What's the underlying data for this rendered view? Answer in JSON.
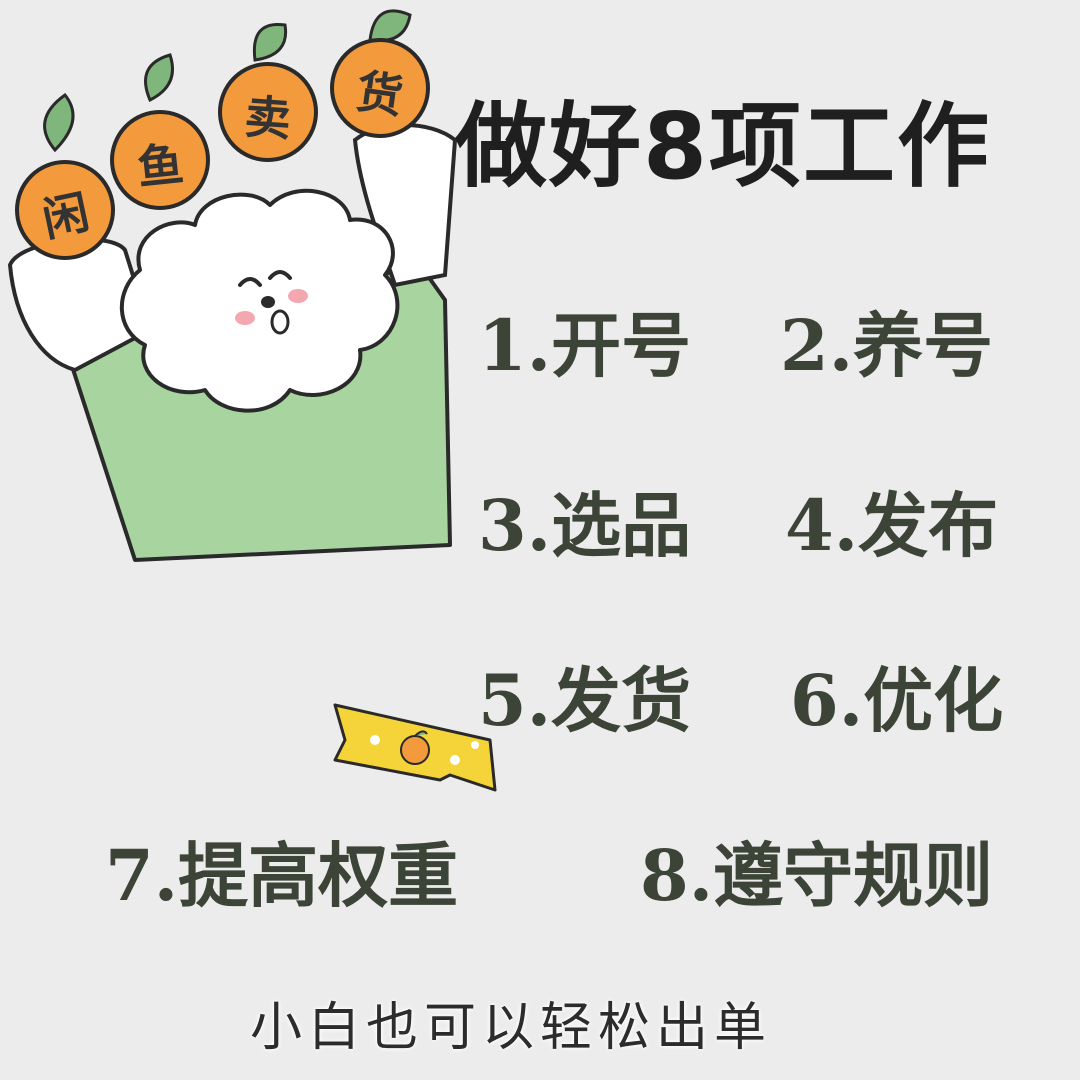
{
  "title": "做好8项工作",
  "oranges": [
    "闲",
    "鱼",
    "卖",
    "货"
  ],
  "items": [
    "1.开号",
    "2.养号",
    "3.选品",
    "4.发布",
    "5.发货",
    "6.优化",
    "7.提高权重",
    "8.遵守规则"
  ],
  "footer": "小白也可以轻松出单",
  "colors": {
    "background": "#ececec",
    "orange": "#f39a3c",
    "leaf": "#7fb67b",
    "shirt": "#a8d4a0",
    "tape": "#f5d43a",
    "text": "#3b4437"
  }
}
